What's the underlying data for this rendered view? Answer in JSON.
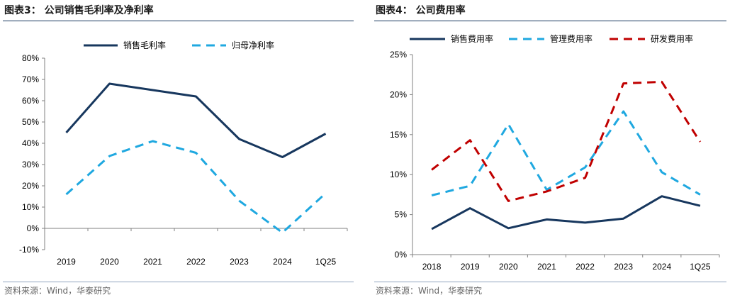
{
  "left": {
    "title": "图表3：  公司销售毛利率及净利率",
    "source": "资料来源：Wind，华泰研究"
  },
  "right": {
    "title": "图表4：  公司费用率",
    "source": "资料来源：Wind，华泰研究"
  },
  "colors": {
    "navy": "#17375e",
    "cyan": "#1fa8e0",
    "red": "#c00000"
  },
  "chart_data": [
    {
      "type": "line",
      "categories": [
        "2019",
        "2020",
        "2021",
        "2022",
        "2023",
        "2024",
        "1Q25"
      ],
      "series": [
        {
          "name": "销售毛利率",
          "values": [
            45,
            68,
            65,
            62,
            42,
            33.5,
            44.5
          ],
          "color": "#17375e",
          "dash": "solid"
        },
        {
          "name": "归母净利率",
          "values": [
            16,
            34,
            41,
            35.5,
            13,
            -2,
            16.5
          ],
          "color": "#1fa8e0",
          "dash": "dashed"
        }
      ],
      "ylim": [
        -10,
        80
      ],
      "yticks": [
        -10,
        0,
        10,
        20,
        30,
        40,
        50,
        60,
        70,
        80
      ],
      "ytick_labels": [
        "-10%",
        "0%",
        "10%",
        "20%",
        "30%",
        "40%",
        "50%",
        "60%",
        "70%",
        "80%"
      ],
      "legend": "top"
    },
    {
      "type": "line",
      "categories": [
        "2018",
        "2019",
        "2020",
        "2021",
        "2022",
        "2023",
        "2024",
        "1Q25"
      ],
      "series": [
        {
          "name": "销售费用率",
          "values": [
            3.2,
            5.8,
            3.3,
            4.4,
            4.0,
            4.5,
            7.3,
            6.1
          ],
          "color": "#17375e",
          "dash": "solid"
        },
        {
          "name": "管理费用率",
          "values": [
            7.4,
            8.6,
            16.3,
            8.1,
            10.9,
            17.9,
            10.3,
            7.5
          ],
          "color": "#1fa8e0",
          "dash": "dashed"
        },
        {
          "name": "研发费用率",
          "values": [
            10.6,
            14.3,
            6.7,
            7.9,
            9.6,
            21.4,
            21.6,
            14.1
          ],
          "color": "#c00000",
          "dash": "dashed"
        }
      ],
      "ylim": [
        0,
        25
      ],
      "yticks": [
        0,
        5,
        10,
        15,
        20,
        25
      ],
      "ytick_labels": [
        "0%",
        "5%",
        "10%",
        "15%",
        "20%",
        "25%"
      ],
      "legend": "top"
    }
  ]
}
